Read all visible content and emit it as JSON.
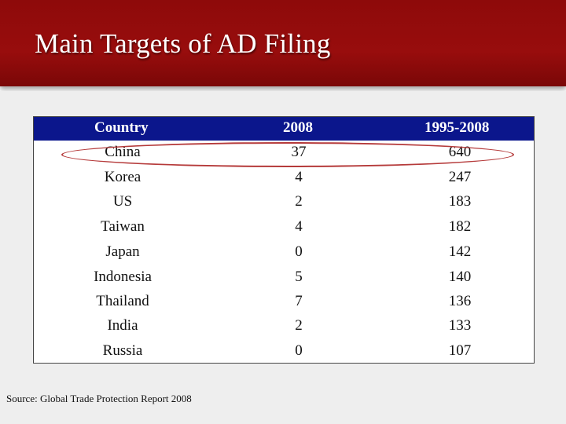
{
  "slide": {
    "title": "Main Targets of AD Filing",
    "source": "Source: Global Trade Protection Report 2008"
  },
  "table": {
    "headers": [
      "Country",
      "2008",
      "1995-2008"
    ],
    "rows": [
      [
        "China",
        "37",
        "640"
      ],
      [
        "Korea",
        "4",
        "247"
      ],
      [
        "US",
        "2",
        "183"
      ],
      [
        "Taiwan",
        "4",
        "182"
      ],
      [
        "Japan",
        "0",
        "142"
      ],
      [
        "Indonesia",
        "5",
        "140"
      ],
      [
        "Thailand",
        "7",
        "136"
      ],
      [
        "India",
        "2",
        "133"
      ],
      [
        "Russia",
        "0",
        "107"
      ]
    ],
    "highlighted_row": "China"
  },
  "colors": {
    "title_bar": "#980d0d",
    "header_row": "#0b168c",
    "highlight_ellipse": "#b53a3a"
  }
}
